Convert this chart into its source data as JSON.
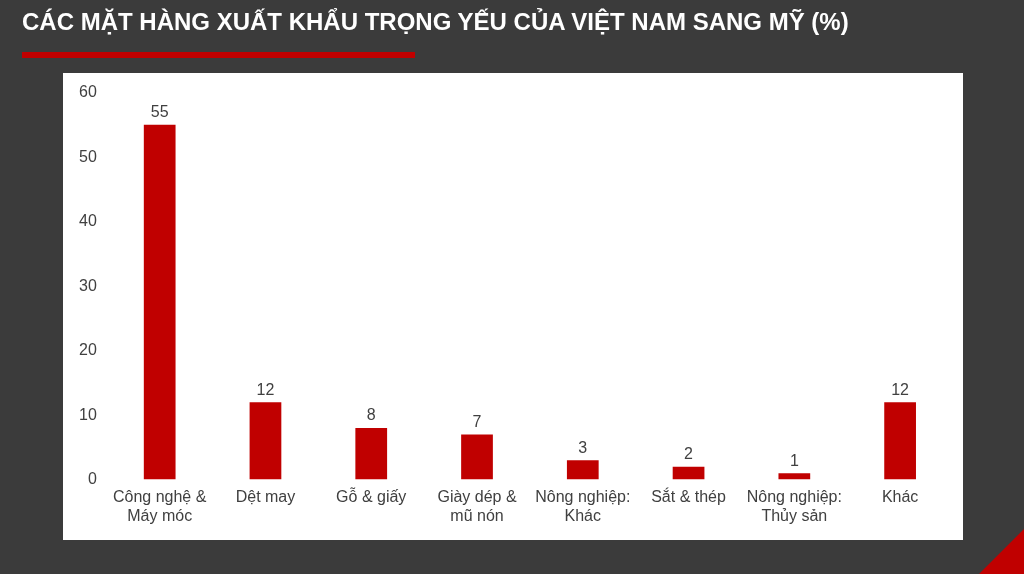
{
  "chart_data": {
    "type": "bar",
    "title": "CÁC MẶT HÀNG XUẤT KHẨU TRỌNG YẾU CỦA VIỆT NAM SANG MỸ (%)",
    "categories": [
      "Công nghệ & Máy móc",
      "Dệt may",
      "Gỗ & giấy",
      "Giày dép & mũ nón",
      "Nông nghiệp: Khác",
      "Sắt & thép",
      "Nông nghiệp: Thủy sản",
      "Khác"
    ],
    "values": [
      55,
      12,
      8,
      7,
      3,
      2,
      1,
      12
    ],
    "color": "#c00000",
    "ylim": [
      0,
      60
    ],
    "yticks": [
      0,
      10,
      20,
      30,
      40,
      50,
      60
    ],
    "grid": false,
    "legend": false,
    "data_labels": true
  }
}
